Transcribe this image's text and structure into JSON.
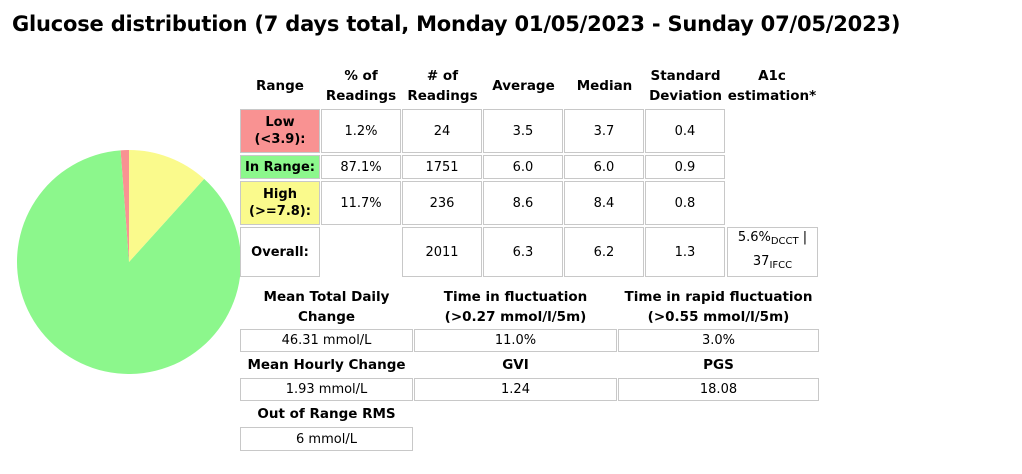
{
  "title": "Glucose distribution (7 days total, Monday 01/05/2023 - Sunday 07/05/2023)",
  "colors": {
    "low": "#f99292",
    "in_range": "#8cf78c",
    "high": "#fafa8c"
  },
  "table": {
    "headers": {
      "range": "Range",
      "pct_l1": "% of",
      "pct_l2": "Readings",
      "num_l1": "# of",
      "num_l2": "Readings",
      "average": "Average",
      "median": "Median",
      "sd_l1": "Standard",
      "sd_l2": "Deviation",
      "a1c_l1": "A1c",
      "a1c_l2": "estimation*"
    },
    "rows": [
      {
        "label_l1": "Low",
        "label_l2": "(<3.9):",
        "pct": "1.2%",
        "count": "24",
        "avg": "3.5",
        "median": "3.7",
        "sd": "0.4"
      },
      {
        "label_l1": "In Range:",
        "pct": "87.1%",
        "count": "1751",
        "avg": "6.0",
        "median": "6.0",
        "sd": "0.9"
      },
      {
        "label_l1": "High",
        "label_l2": "(>=7.8):",
        "pct": "11.7%",
        "count": "236",
        "avg": "8.6",
        "median": "8.4",
        "sd": "0.8"
      }
    ],
    "overall": {
      "label": "Overall:",
      "count": "2011",
      "avg": "6.3",
      "median": "6.2",
      "sd": "1.3",
      "a1c_dcct": "5.6%",
      "a1c_dcct_sub": "DCCT",
      "a1c_sep": " |",
      "a1c_ifcc": "37",
      "a1c_ifcc_sub": "IFCC"
    }
  },
  "stats": {
    "mean_total_daily_change_l1": "Mean Total Daily",
    "mean_total_daily_change_l2": "Change",
    "mean_total_daily_change_value": "46.31 mmol/L",
    "time_in_fluct_l1": "Time in fluctuation",
    "time_in_fluct_l2": "(>0.27 mmol/l/5m)",
    "time_in_fluct_value": "11.0%",
    "time_in_rapid_l1": "Time in rapid fluctuation",
    "time_in_rapid_l2": "(>0.55 mmol/l/5m)",
    "time_in_rapid_value": "3.0%",
    "mean_hourly_change": "Mean Hourly Change",
    "mean_hourly_change_value": "1.93 mmol/L",
    "gvi": "GVI",
    "gvi_value": "1.24",
    "pgs": "PGS",
    "pgs_value": "18.08",
    "out_of_range_rms": "Out of Range RMS",
    "out_of_range_rms_value": "6 mmol/L"
  },
  "chart_data": {
    "type": "pie",
    "categories": [
      "Low",
      "In Range",
      "High"
    ],
    "values": [
      1.2,
      87.1,
      11.7
    ],
    "colors": [
      "#f99292",
      "#8cf78c",
      "#fafa8c"
    ]
  }
}
